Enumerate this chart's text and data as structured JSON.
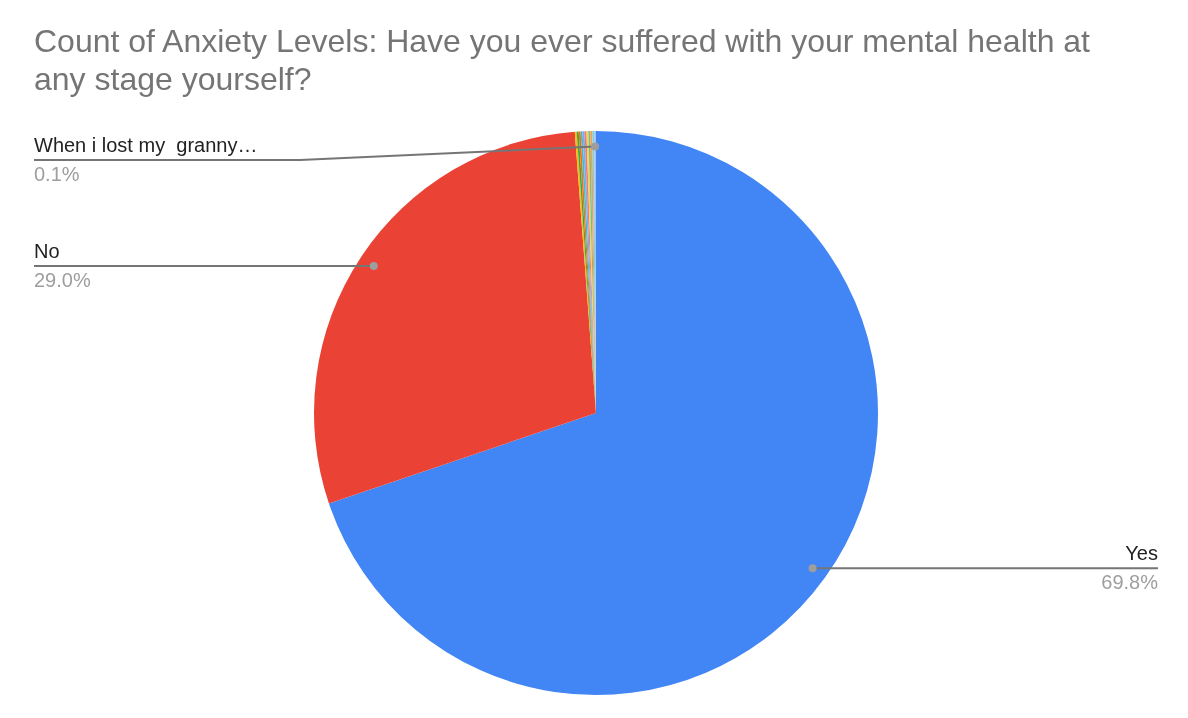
{
  "chart_data": {
    "type": "pie",
    "title": "Count of Anxiety Levels: Have you ever suffered with your mental health at any stage yourself?",
    "categories": [
      "Yes",
      "No",
      null,
      null,
      null,
      null,
      null,
      null,
      null,
      null,
      null,
      null,
      "When i lost my  granny…"
    ],
    "values": [
      69.8,
      29.0,
      0.11,
      0.11,
      0.11,
      0.11,
      0.11,
      0.11,
      0.11,
      0.11,
      0.11,
      0.11,
      0.1
    ],
    "colors": [
      "#4285f4",
      "#ea4335",
      "#fbbc04",
      "#34a853",
      "#ff6d01",
      "#46bdc6",
      "#7baaf7",
      "#f07b72",
      "#fcd04f",
      "#71c287",
      "#ff994d",
      "#7ed1d7",
      "#a1c2fa"
    ],
    "value_labels": [
      "69.8%",
      "29.0%",
      null,
      null,
      null,
      null,
      null,
      null,
      null,
      null,
      null,
      null,
      "0.1%"
    ],
    "legend": false
  }
}
